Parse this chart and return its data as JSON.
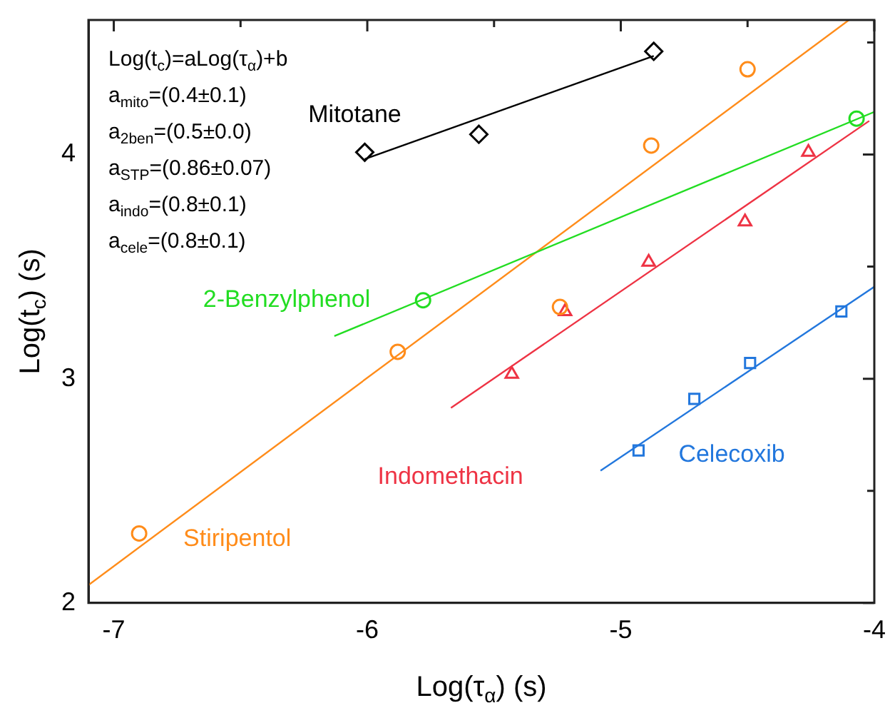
{
  "chart_data": {
    "type": "scatter",
    "xlabel": "Log(τ$_{α}$) (s)",
    "ylabel": "Log(t$_{c}$) (s)",
    "xlim": [
      -7.1,
      -4
    ],
    "ylim": [
      2,
      4.6
    ],
    "xticks": [
      -7,
      {
        "value": -6.5,
        "label": null
      },
      -6,
      {
        "value": -5.5,
        "label": null
      },
      -5,
      {
        "value": -4.5,
        "label": null
      },
      -4
    ],
    "yticks": [
      2,
      {
        "value": 2.5,
        "label": null
      },
      3,
      {
        "value": 3.5,
        "label": null
      },
      4,
      {
        "value": 4.5,
        "label": null
      }
    ],
    "grid": false,
    "legend": false,
    "annotations": [
      "Log(t$_{c}$)=aLog(τ$_{α}$)+b",
      "a$_{mito}$=(0.4±0.1)",
      "a$_{2ben}$=(0.5±0.0)",
      "a$_{STP}$=(0.86±0.07)",
      "a$_{indo}$=(0.8±0.1)",
      "a$_{cele}$=(0.8±0.1)"
    ],
    "series": [
      {
        "name": "Mitotane",
        "color": "#000000",
        "marker": "diamond",
        "x": [
          -6.01,
          -5.56,
          -4.87
        ],
        "values": [
          4.01,
          4.09,
          4.46
        ]
      },
      {
        "type": "line",
        "color": "#000000",
        "marker": "none",
        "x": [
          -6.01,
          -4.87
        ],
        "values": [
          3.98,
          4.44
        ]
      },
      {
        "name": "2-Benzylphenol",
        "color": "#22dd22",
        "marker": "circle",
        "x": [
          -5.78,
          -4.07
        ],
        "values": [
          3.35,
          4.16
        ]
      },
      {
        "type": "line",
        "color": "#22dd22",
        "marker": "none",
        "x": [
          -6.13,
          -4.0
        ],
        "values": [
          3.19,
          4.19
        ]
      },
      {
        "name": "Stiripentol",
        "color": "#ff8c1a",
        "marker": "circle",
        "x": [
          -6.9,
          -5.88,
          -5.24,
          -4.88,
          -4.5
        ],
        "values": [
          2.31,
          3.12,
          3.32,
          4.04,
          4.38
        ]
      },
      {
        "type": "line",
        "color": "#ff8c1a",
        "marker": "none",
        "x": [
          -7.1,
          -4.1
        ],
        "values": [
          2.08,
          4.6
        ]
      },
      {
        "name": "Indomethacin",
        "color": "#ee3344",
        "marker": "triangle",
        "x": [
          -5.43,
          -5.22,
          -4.89,
          -4.51,
          -4.26
        ],
        "values": [
          3.02,
          3.3,
          3.52,
          3.7,
          4.01
        ]
      },
      {
        "type": "line",
        "color": "#ee3344",
        "marker": "none",
        "x": [
          -5.67,
          -4.02
        ],
        "values": [
          2.87,
          4.15
        ]
      },
      {
        "name": "Celecoxib",
        "color": "#2277dd",
        "marker": "square",
        "x": [
          -4.93,
          -4.71,
          -4.49,
          -4.13
        ],
        "values": [
          2.68,
          2.91,
          3.07,
          3.3
        ]
      },
      {
        "type": "line",
        "color": "#2277dd",
        "marker": "none",
        "x": [
          -5.08,
          -4.0
        ],
        "values": [
          2.59,
          3.41
        ]
      }
    ]
  }
}
